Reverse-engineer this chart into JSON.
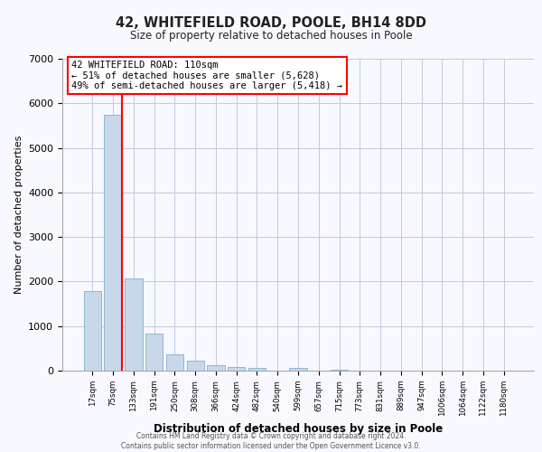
{
  "title": "42, WHITEFIELD ROAD, POOLE, BH14 8DD",
  "subtitle": "Size of property relative to detached houses in Poole",
  "xlabel": "Distribution of detached houses by size in Poole",
  "ylabel": "Number of detached properties",
  "bar_labels": [
    "17sqm",
    "75sqm",
    "133sqm",
    "191sqm",
    "250sqm",
    "308sqm",
    "366sqm",
    "424sqm",
    "482sqm",
    "540sqm",
    "599sqm",
    "657sqm",
    "715sqm",
    "773sqm",
    "831sqm",
    "889sqm",
    "947sqm",
    "1006sqm",
    "1064sqm",
    "1122sqm",
    "1180sqm"
  ],
  "bar_values": [
    1780,
    5750,
    2060,
    830,
    370,
    215,
    120,
    90,
    65,
    0,
    55,
    0,
    30,
    0,
    0,
    0,
    0,
    0,
    0,
    0,
    0
  ],
  "bar_color": "#c8d8ea",
  "bar_edge_color": "#7fafd0",
  "vline_color": "red",
  "annotation_text": "42 WHITEFIELD ROAD: 110sqm\n← 51% of detached houses are smaller (5,628)\n49% of semi-detached houses are larger (5,418) →",
  "annotation_box_color": "white",
  "annotation_box_edge_color": "red",
  "ylim": [
    0,
    7000
  ],
  "yticks": [
    0,
    1000,
    2000,
    3000,
    4000,
    5000,
    6000,
    7000
  ],
  "footer_line1": "Contains HM Land Registry data © Crown copyright and database right 2024.",
  "footer_line2": "Contains public sector information licensed under the Open Government Licence v3.0.",
  "bg_color": "#f8f8ff",
  "grid_color": "#c0ccdd"
}
